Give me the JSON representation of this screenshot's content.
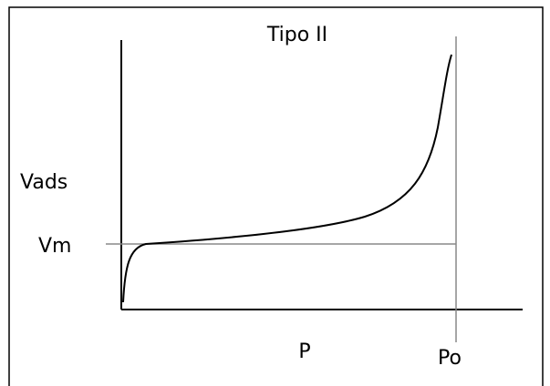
{
  "title": "Tipo II",
  "labels": {
    "y_axis": "Vads",
    "monolayer": "Vm",
    "x_axis": "P",
    "saturation": "Po"
  }
}
